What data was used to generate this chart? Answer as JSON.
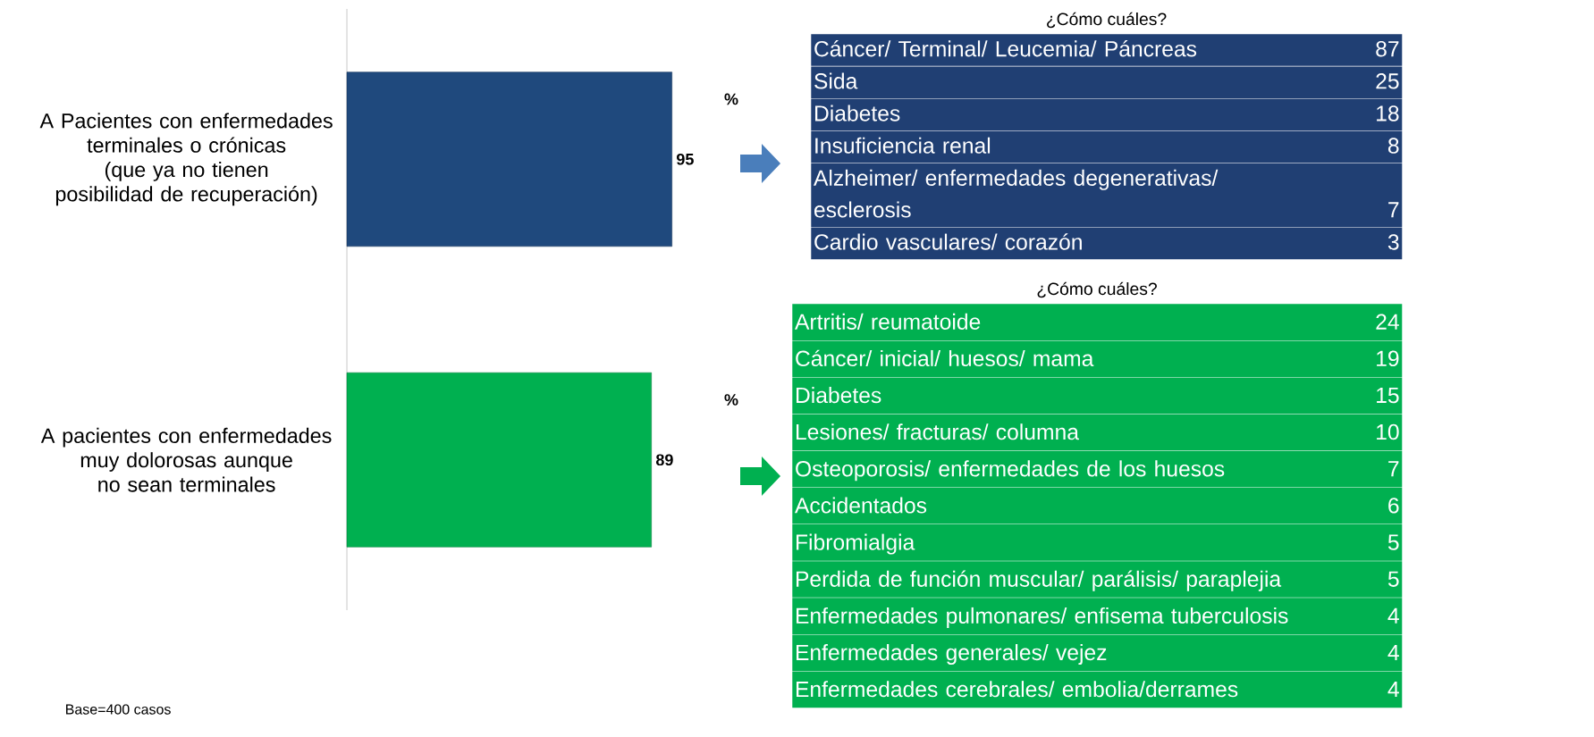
{
  "chart_data": [
    {
      "type": "bar",
      "orientation": "horizontal",
      "categories": [
        "A Pacientes con enfermedades terminales o crónicas (que ya no tienen posibilidad de recuperación)",
        "A pacientes con enfermedades muy dolorosas aunque no sean terminales"
      ],
      "values": [
        95,
        89
      ],
      "colors": [
        "#1f497d",
        "#00b050"
      ],
      "data_labels": true,
      "annotations": [
        "%",
        "%",
        "Base=400 casos"
      ]
    },
    {
      "type": "other",
      "title": "¿Cómo cuáles?",
      "categories": [
        "Cáncer/ Terminal/ Leucemia/ Páncreas",
        "Sida",
        "Diabetes",
        "Insuficiencia renal",
        "Alzheimer/ enfermedades degenerativas/ esclerosis",
        "Cardio vasculares/ corazón"
      ],
      "values": [
        87,
        25,
        18,
        8,
        7,
        3
      ],
      "color": "#203f73",
      "data_labels": true
    },
    {
      "type": "other",
      "title": "¿Cómo cuáles?",
      "categories": [
        "Artritis/ reumatoide",
        "Cáncer/ inicial/ huesos/ mama",
        "Diabetes",
        "Lesiones/ fracturas/ columna",
        "Osteoporosis/ enfermedades de los huesos",
        "Accidentados",
        "Fibromialgia",
        "Perdida de función muscular/ parálisis/ paraplejia",
        "Enfermedades pulmonares/ enfisema tuberculosis",
        "Enfermedades generales/ vejez",
        "Enfermedades cerebrales/ embolia/derrames"
      ],
      "values": [
        24,
        19,
        15,
        10,
        7,
        6,
        5,
        5,
        4,
        4,
        4
      ],
      "color": "#00b050",
      "data_labels": true
    }
  ]
}
